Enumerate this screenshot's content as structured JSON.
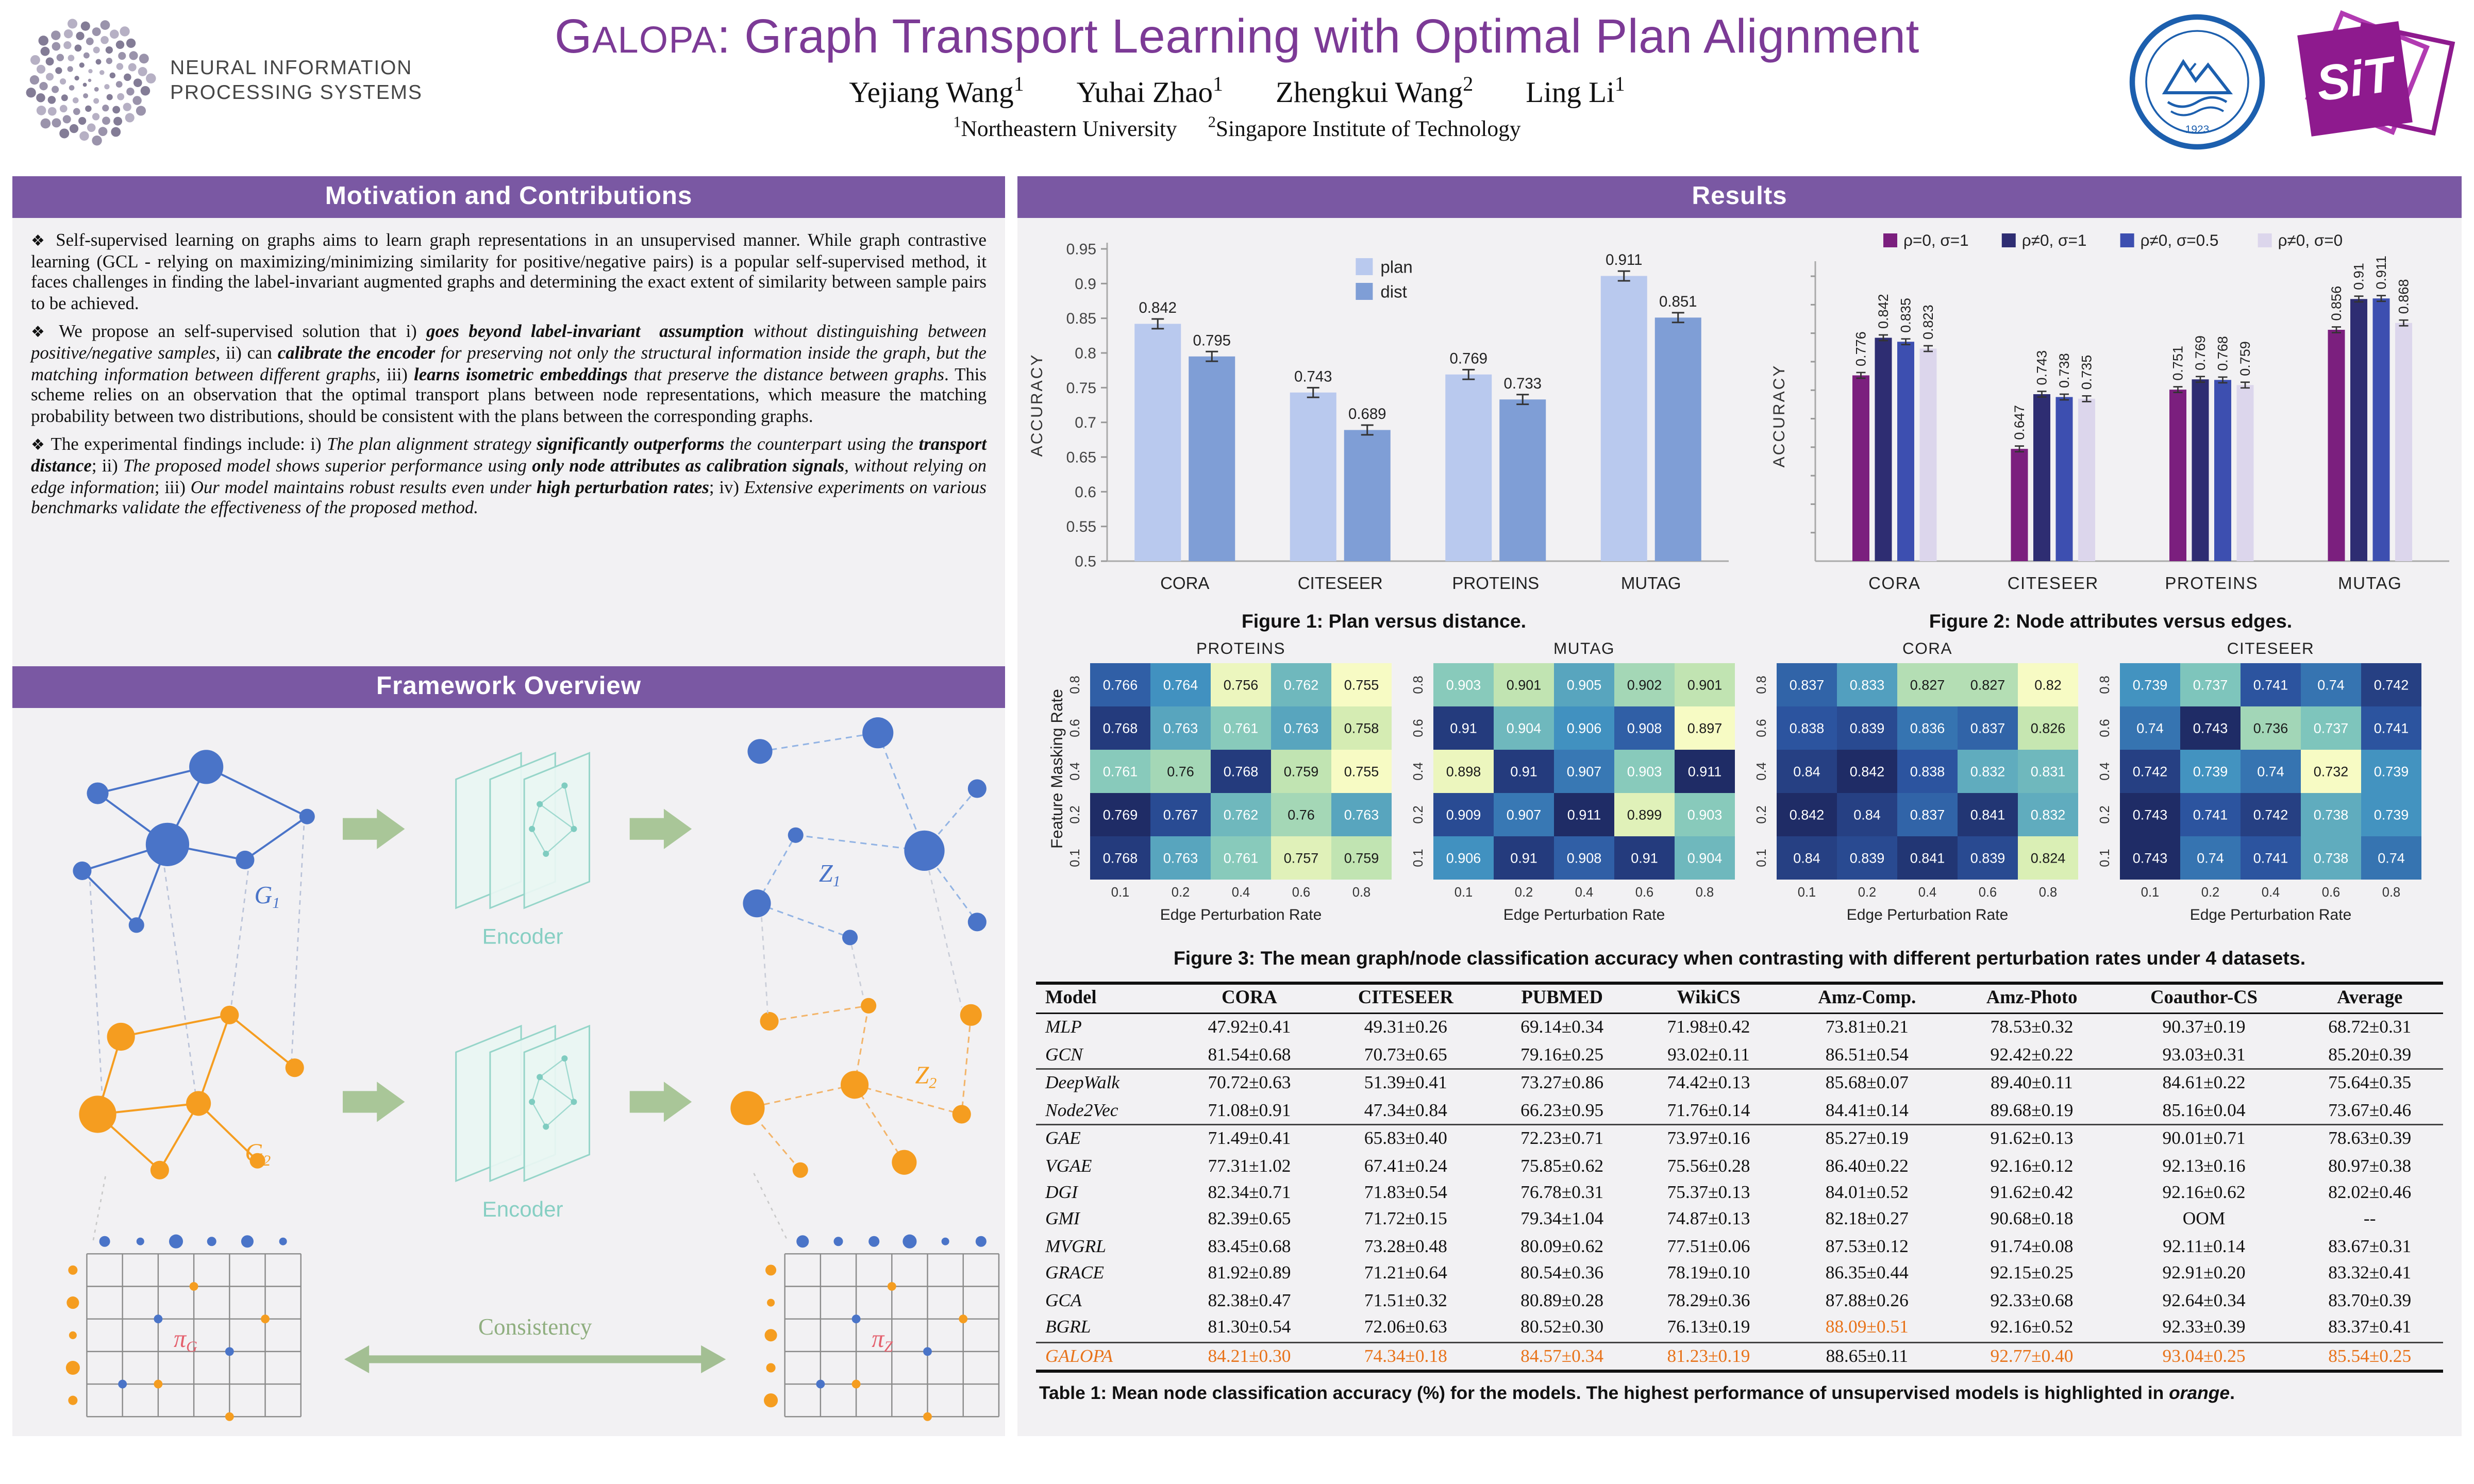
{
  "colors": {
    "purple_bar": "#7a58a3",
    "title_purple": "#7c3a96",
    "highlight_orange": "#e8731a",
    "plan_blue": "#b9c9ee",
    "dist_blue": "#7f9ed6"
  },
  "header": {
    "logo_line1": "NEURAL INFORMATION",
    "logo_line2": "PROCESSING SYSTEMS",
    "title_g": "G",
    "title_smallcaps": "ALOPA",
    "title_rest": ": Graph Transport Learning with Optimal Plan Alignment",
    "authors": [
      {
        "name": "Yejiang Wang",
        "sup": "1"
      },
      {
        "name": "Yuhai Zhao",
        "sup": "1"
      },
      {
        "name": "Zhengkui Wang",
        "sup": "2"
      },
      {
        "name": "Ling Li",
        "sup": "1"
      }
    ],
    "affiliations": [
      {
        "sup": "1",
        "name": "Northeastern University"
      },
      {
        "sup": "2",
        "name": "Singapore Institute of Technology"
      }
    ],
    "neu_year": "1923",
    "sit_text": "SiT"
  },
  "left": {
    "motivation_header": "Motivation and Contributions",
    "paragraphs_html": [
      "<span class='dm'>❖</span> Self-supervised learning on graphs aims to learn graph representations in an unsupervised manner. While graph contrastive learning (GCL - relying on maximizing/minimizing similarity for positive/negative pairs) is a popular self-supervised method, it faces challenges in finding the label-invariant augmented graphs and determining the exact extent of similarity between sample pairs to be achieved.",
      "<span class='dm'>❖</span> We propose an self-supervised solution that i) <b><i>goes beyond label-invariant&nbsp; assumption</i></b> <i>without distinguishing between positive/negative samples</i>, ii) can <b><i>calibrate the encoder</i></b> <i>for preserving not only the structural information inside the graph, but the matching information between different graphs</i>, iii) <b><i>learns isometric embeddings</i></b> <i>that preserve the distance between graphs</i>. This scheme relies on an observation that the optimal transport plans between node representations, which measure the matching probability between two distributions, should be consistent with the plans between the corresponding graphs.",
      "<span class='dm'>❖</span> The experimental findings include: i) <i>The plan alignment strategy <b>significantly outperforms</b> the counterpart using the <b>transport distance</b></i>; ii) <i>The proposed model shows superior performance using <b>only node attributes as calibration signals</b>, without relying on edge information</i>; iii) <i>Our model maintains robust results even under <b>high perturbation rates</b></i>; iv) <i>Extensive experiments on various benchmarks validate the effectiveness of the proposed method.</i>"
    ],
    "framework_header": "Framework Overview",
    "framework": {
      "g1": {
        "base": "G",
        "sub": "1"
      },
      "g2": {
        "base": "G",
        "sub": "2"
      },
      "z1": {
        "base": "Z",
        "sub": "1"
      },
      "z2": {
        "base": "Z",
        "sub": "2"
      },
      "encoder": "Encoder",
      "pi_g": {
        "base": "π",
        "sub": "G"
      },
      "pi_z": {
        "base": "π",
        "sub": "Z"
      },
      "consistency": "Consistency"
    }
  },
  "results": {
    "header": "Results"
  },
  "chart_data": [
    {
      "id": "fig1",
      "type": "bar",
      "caption": "Figure 1: Plan versus distance.",
      "ylabel": "ACCURACY",
      "ylim": [
        0.5,
        0.95
      ],
      "yticks": [
        0.5,
        0.55,
        0.6,
        0.65,
        0.7,
        0.75,
        0.8,
        0.85,
        0.9,
        0.95
      ],
      "ytick_labels": [
        "0.5",
        "0.55",
        "0.6",
        "0.65",
        "0.7",
        "0.75",
        "0.8",
        "0.85",
        "0.9",
        "0.95"
      ],
      "categories": [
        "CORA",
        "CITESEER",
        "PROTEINS",
        "MUTAG"
      ],
      "errorbar": 0.007,
      "legend_position": "top-center-vertical",
      "grid": false,
      "series": [
        {
          "name": "plan",
          "color": "#b9c9ee",
          "values": [
            0.842,
            0.743,
            0.769,
            0.911
          ]
        },
        {
          "name": "dist",
          "color": "#7f9ed6",
          "values": [
            0.795,
            0.689,
            0.733,
            0.851
          ]
        }
      ]
    },
    {
      "id": "fig2",
      "type": "bar",
      "caption": "Figure 2: Node attributes versus edges.",
      "ylabel": "ACCURACY",
      "ylim": [
        0.45,
        0.96
      ],
      "yticks": [
        0.5,
        0.55,
        0.6,
        0.65,
        0.7,
        0.75,
        0.8,
        0.85,
        0.9,
        0.95
      ],
      "categories": [
        "CORA",
        "CITESEER",
        "PROTEINS",
        "MUTAG"
      ],
      "errorbar": 0.005,
      "legend_position": "top-horizontal",
      "grid": false,
      "value_labels_rotated": true,
      "series": [
        {
          "name": "ρ=0, σ=1",
          "color": "#7b1f7e",
          "values": [
            0.776,
            0.647,
            0.751,
            0.856
          ]
        },
        {
          "name": "ρ≠0, σ=1",
          "color": "#2e2d72",
          "values": [
            0.842,
            0.743,
            0.769,
            0.91
          ]
        },
        {
          "name": "ρ≠0, σ=0.5",
          "color": "#3d4fb0",
          "values": [
            0.835,
            0.738,
            0.768,
            0.911
          ]
        },
        {
          "name": "ρ≠0, σ=0",
          "color": "#dcd6ec",
          "values": [
            0.823,
            0.735,
            0.759,
            0.868
          ]
        }
      ]
    },
    {
      "id": "fig3",
      "type": "heatmap",
      "caption": "Figure 3: The mean graph/node classification accuracy when contrasting with different perturbation rates under 4 datasets.",
      "xlabel": "Edge Perturbation Rate",
      "ylabel": "Feature Masking Rate",
      "x": [
        "0.1",
        "0.2",
        "0.4",
        "0.6",
        "0.8"
      ],
      "y": [
        "0.8",
        "0.6",
        "0.4",
        "0.2",
        "0.1"
      ],
      "maps": [
        {
          "title": "PROTEINS",
          "rows": [
            [
              0.766,
              0.764,
              0.756,
              0.762,
              0.755
            ],
            [
              0.768,
              0.763,
              0.761,
              0.763,
              0.758
            ],
            [
              0.761,
              0.76,
              0.768,
              0.759,
              0.755
            ],
            [
              0.769,
              0.767,
              0.762,
              0.76,
              0.763
            ],
            [
              0.768,
              0.763,
              0.761,
              0.757,
              0.759
            ]
          ]
        },
        {
          "title": "MUTAG",
          "rows": [
            [
              0.903,
              0.901,
              0.905,
              0.902,
              0.901
            ],
            [
              0.91,
              0.904,
              0.906,
              0.908,
              0.897
            ],
            [
              0.898,
              0.91,
              0.907,
              0.903,
              0.911
            ],
            [
              0.909,
              0.907,
              0.911,
              0.899,
              0.903
            ],
            [
              0.906,
              0.91,
              0.908,
              0.91,
              0.904
            ]
          ]
        },
        {
          "title": "CORA",
          "rows": [
            [
              0.837,
              0.833,
              0.827,
              0.827,
              0.82
            ],
            [
              0.838,
              0.839,
              0.836,
              0.837,
              0.826
            ],
            [
              0.84,
              0.842,
              0.838,
              0.832,
              0.831
            ],
            [
              0.842,
              0.84,
              0.837,
              0.841,
              0.832
            ],
            [
              0.84,
              0.839,
              0.841,
              0.839,
              0.824
            ]
          ]
        },
        {
          "title": "CITESEER",
          "rows": [
            [
              0.739,
              0.737,
              0.741,
              0.74,
              0.742
            ],
            [
              0.74,
              0.743,
              0.736,
              0.737,
              0.741
            ],
            [
              0.742,
              0.739,
              0.74,
              0.732,
              0.739
            ],
            [
              0.743,
              0.741,
              0.742,
              0.738,
              0.739
            ],
            [
              0.743,
              0.74,
              0.741,
              0.738,
              0.74
            ]
          ]
        }
      ]
    }
  ],
  "table": {
    "columns": [
      "Model",
      "CORA",
      "CITESEER",
      "PUBMED",
      "WikiCS",
      "Amz-Comp.",
      "Amz-Photo",
      "Coauthor-CS",
      "Average"
    ],
    "rows": [
      {
        "model": "MLP",
        "values": [
          "47.92±0.41",
          "49.31±0.26",
          "69.14±0.34",
          "71.98±0.42",
          "73.81±0.21",
          "78.53±0.32",
          "90.37±0.19",
          "68.72±0.31"
        ],
        "orange": []
      },
      {
        "model": "GCN",
        "values": [
          "81.54±0.68",
          "70.73±0.65",
          "79.16±0.25",
          "93.02±0.11",
          "86.51±0.54",
          "92.42±0.22",
          "93.03±0.31",
          "85.20±0.39"
        ],
        "orange": [],
        "group_end": true
      },
      {
        "model": "DeepWalk",
        "values": [
          "70.72±0.63",
          "51.39±0.41",
          "73.27±0.86",
          "74.42±0.13",
          "85.68±0.07",
          "89.40±0.11",
          "84.61±0.22",
          "75.64±0.35"
        ],
        "orange": []
      },
      {
        "model": "Node2Vec",
        "values": [
          "71.08±0.91",
          "47.34±0.84",
          "66.23±0.95",
          "71.76±0.14",
          "84.41±0.14",
          "89.68±0.19",
          "85.16±0.04",
          "73.67±0.46"
        ],
        "orange": [],
        "group_end": true
      },
      {
        "model": "GAE",
        "values": [
          "71.49±0.41",
          "65.83±0.40",
          "72.23±0.71",
          "73.97±0.16",
          "85.27±0.19",
          "91.62±0.13",
          "90.01±0.71",
          "78.63±0.39"
        ],
        "orange": []
      },
      {
        "model": "VGAE",
        "values": [
          "77.31±1.02",
          "67.41±0.24",
          "75.85±0.62",
          "75.56±0.28",
          "86.40±0.22",
          "92.16±0.12",
          "92.13±0.16",
          "80.97±0.38"
        ],
        "orange": []
      },
      {
        "model": "DGI",
        "values": [
          "82.34±0.71",
          "71.83±0.54",
          "76.78±0.31",
          "75.37±0.13",
          "84.01±0.52",
          "91.62±0.42",
          "92.16±0.62",
          "82.02±0.46"
        ],
        "orange": []
      },
      {
        "model": "GMI",
        "values": [
          "82.39±0.65",
          "71.72±0.15",
          "79.34±1.04",
          "74.87±0.13",
          "82.18±0.27",
          "90.68±0.18",
          "OOM",
          "--"
        ],
        "orange": []
      },
      {
        "model": "MVGRL",
        "values": [
          "83.45±0.68",
          "73.28±0.48",
          "80.09±0.62",
          "77.51±0.06",
          "87.53±0.12",
          "91.74±0.08",
          "92.11±0.14",
          "83.67±0.31"
        ],
        "orange": []
      },
      {
        "model": "GRACE",
        "values": [
          "81.92±0.89",
          "71.21±0.64",
          "80.54±0.36",
          "78.19±0.10",
          "86.35±0.44",
          "92.15±0.25",
          "92.91±0.20",
          "83.32±0.41"
        ],
        "orange": []
      },
      {
        "model": "GCA",
        "values": [
          "82.38±0.47",
          "71.51±0.32",
          "80.89±0.28",
          "78.29±0.36",
          "87.88±0.26",
          "92.33±0.68",
          "92.64±0.34",
          "83.70±0.39"
        ],
        "orange": []
      },
      {
        "model": "BGRL",
        "values": [
          "81.30±0.54",
          "72.06±0.63",
          "80.52±0.30",
          "76.13±0.19",
          "88.09±0.51",
          "92.16±0.52",
          "92.33±0.39",
          "83.37±0.41"
        ],
        "orange": [
          4
        ],
        "group_end": true
      },
      {
        "model": "GALOPA",
        "values": [
          "84.21±0.30",
          "74.34±0.18",
          "84.57±0.34",
          "81.23±0.19",
          "88.65±0.11",
          "92.77±0.40",
          "93.04±0.25",
          "85.54±0.25"
        ],
        "orange": [
          0,
          1,
          2,
          3,
          5,
          6,
          7
        ],
        "model_orange": true
      }
    ],
    "caption_html": "Table 1: Mean node classification accuracy (%) for the models. The highest performance of unsupervised models is highlighted in <i>orange</i>."
  }
}
